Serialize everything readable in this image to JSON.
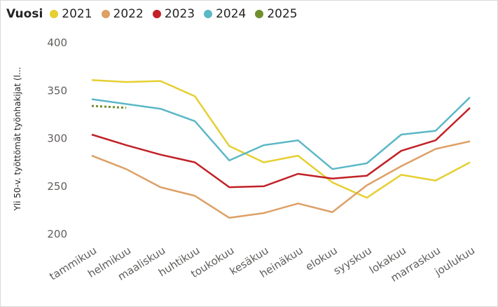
{
  "chart_data": {
    "type": "line",
    "legend_title": "Vuosi",
    "ylabel": "Yli 50-v. työttömät työnhakijat (l...",
    "xlabel": "",
    "ylim": [
      200,
      400
    ],
    "yticks": [
      200,
      250,
      300,
      350,
      400
    ],
    "grid": false,
    "legend_position": "top-left",
    "categories": [
      "tammikuu",
      "helmikuu",
      "maaliskuu",
      "huhtikuu",
      "toukokuu",
      "kesäkuu",
      "heinäkuu",
      "elokuu",
      "syyskuu",
      "lokakuu",
      "marraskuu",
      "joulukuu"
    ],
    "series": [
      {
        "name": "2021",
        "color": "#E6CF31",
        "values": [
          361,
          359,
          360,
          344,
          292,
          275,
          282,
          254,
          238,
          262,
          256,
          275
        ]
      },
      {
        "name": "2022",
        "color": "#DDA066",
        "values": [
          282,
          268,
          249,
          240,
          217,
          222,
          232,
          223,
          251,
          271,
          289,
          297
        ]
      },
      {
        "name": "2023",
        "color": "#C12127",
        "values": [
          304,
          293,
          283,
          275,
          249,
          250,
          263,
          258,
          261,
          287,
          298,
          332
        ]
      },
      {
        "name": "2024",
        "color": "#5BB8C6",
        "values": [
          341,
          336,
          331,
          318,
          277,
          293,
          298,
          268,
          274,
          304,
          308,
          343
        ]
      },
      {
        "name": "2025",
        "color": "#6F8F2E",
        "dotted": true,
        "values": [
          334,
          332,
          null,
          null,
          null,
          null,
          null,
          null,
          null,
          null,
          null,
          null
        ]
      }
    ]
  }
}
